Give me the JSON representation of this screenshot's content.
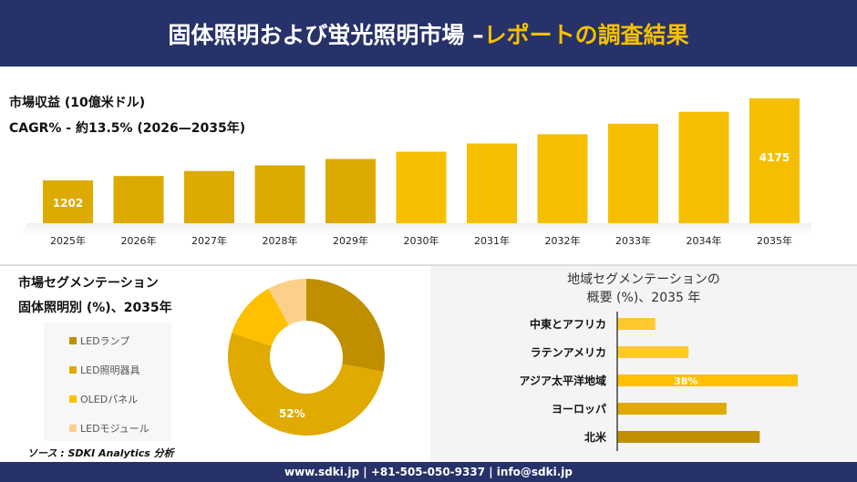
{
  "header": {
    "title_main": "固体照明および蛍光照明市場 –",
    "title_accent": "レポートの調査結果"
  },
  "revenue_label": "市場収益 (10億米ドル)",
  "cagr_label": "CAGR% - 約13.5% (2026—2035年)",
  "segment": {
    "title1": "市場セグメンテーション",
    "title2": "固体照明別 (%)、2035年",
    "source": "ソース : SDKI Analytics 分析"
  },
  "region": {
    "title1": "地域セグメンテーションの",
    "title2": "概要 (%)、2035 年"
  },
  "footer": "www.sdki.jp | +81-505-050-9337 | info@sdki.jp",
  "colors": {
    "navy": "#263269",
    "accent": "#f5c000"
  },
  "chart_data": [
    {
      "type": "bar",
      "categories": [
        "2025年",
        "2026年",
        "2027年",
        "2028年",
        "2029年",
        "2030年",
        "2031年",
        "2032年",
        "2033年",
        "2034年",
        "2035年"
      ],
      "values": [
        1202,
        1361,
        1542,
        1746,
        1978,
        2240,
        2537,
        2873,
        3254,
        3686,
        4175
      ],
      "data_labels": {
        "2025年": "1202",
        "2035年": "4175"
      },
      "ylabel": "市場収益 (10億米ドル)"
    },
    {
      "type": "pie",
      "donut": true,
      "categories": [
        "LEDランプ",
        "LED照明器具",
        "OLEDパネル",
        "LEDモジュール"
      ],
      "values": [
        28,
        52,
        12,
        8
      ],
      "colors": [
        "#bf8f00",
        "#e0aa00",
        "#ffc000",
        "#fdd08a"
      ],
      "data_labels": {
        "LED照明器具": "52%"
      }
    },
    {
      "type": "bar",
      "orientation": "horizontal",
      "categories": [
        "中東とアフリカ",
        "ラテンアメリカ",
        "アジア太平洋地域",
        "ヨーロッパ",
        "北米"
      ],
      "values": [
        8,
        15,
        38,
        23,
        30
      ],
      "colors": [
        "#ffc92e",
        "#ffc92e",
        "#ffc000",
        "#e0aa00",
        "#bf8f00"
      ],
      "data_labels": {
        "アジア太平洋地域": "38%"
      }
    }
  ]
}
